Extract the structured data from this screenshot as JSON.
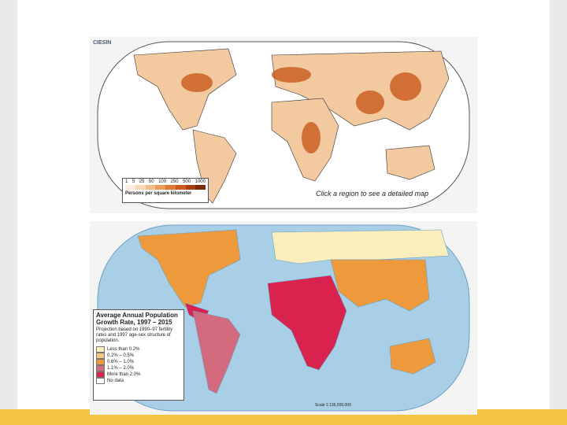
{
  "top_map": {
    "logo": "CIESIN",
    "legend_ticks": [
      "1",
      "5",
      "25",
      "50",
      "100",
      "250",
      "500",
      "1000"
    ],
    "legend_colors": [
      "#fbeee0",
      "#f8d9b8",
      "#f3bd88",
      "#ec9c58",
      "#e07a32",
      "#c95a1c",
      "#a8400f",
      "#7d2a06"
    ],
    "legend_title": "Persons per square kilometer",
    "caption": "Click a region to see a detailed map"
  },
  "bottom_map": {
    "title": "Average Annual Population Growth Rate, 1997 – 2015",
    "note": "Projection based on 1990–97 fertility rates and 1997 age-sex structure of population.",
    "legend": [
      {
        "label": "Less than 0.2%",
        "color": "#fbeebd"
      },
      {
        "label": "0.2% – 0.5%",
        "color": "#f6c97c"
      },
      {
        "label": "0.6% – 1.0%",
        "color": "#ee9a3c"
      },
      {
        "label": "1.1% – 2.0%",
        "color": "#d46a7e"
      },
      {
        "label": "More than 2.0%",
        "color": "#d8234f"
      },
      {
        "label": "No data",
        "color": "#ffffff"
      }
    ],
    "scale": "Scale 1:136,000,000"
  }
}
